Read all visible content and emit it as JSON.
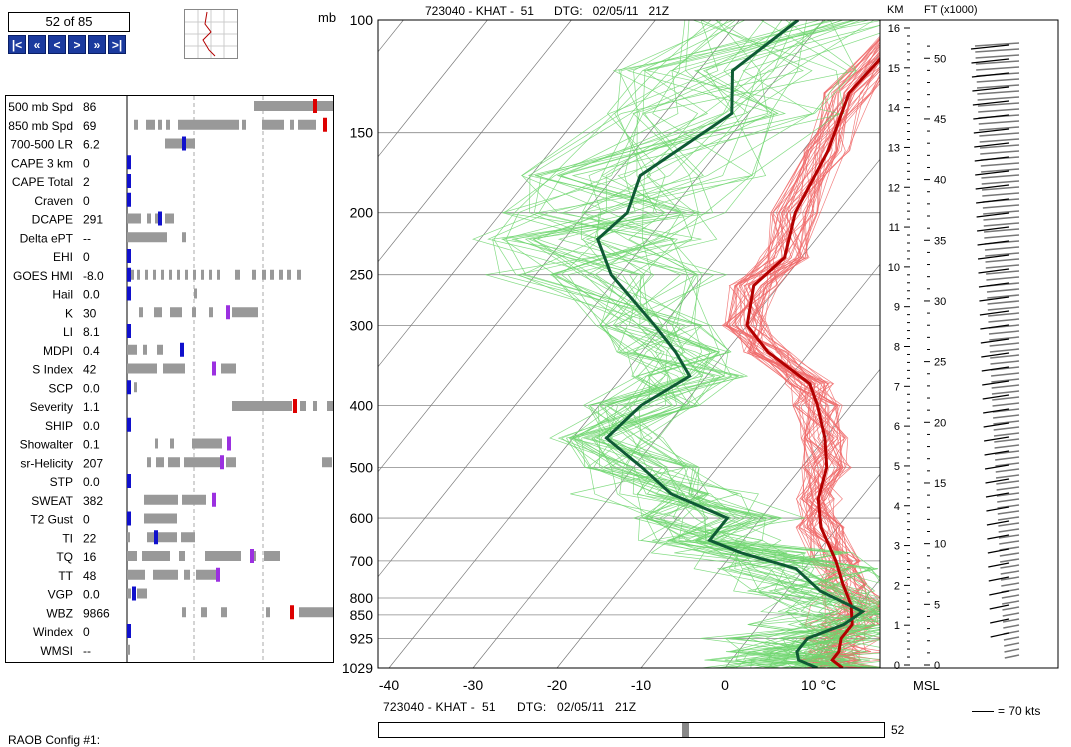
{
  "nav": {
    "counter": "52 of 85",
    "buttons": [
      {
        "label": "|<",
        "name": "first-button"
      },
      {
        "label": "«",
        "name": "prev-fast-button"
      },
      {
        "label": "<",
        "name": "prev-button"
      },
      {
        "label": ">",
        "name": "next-button"
      },
      {
        "label": "»",
        "name": "next-fast-button"
      },
      {
        "label": ">|",
        "name": "last-button"
      }
    ]
  },
  "indices": [
    {
      "label": "500 mb Spd",
      "value": "86"
    },
    {
      "label": "850 mb Spd",
      "value": "69"
    },
    {
      "label": "700-500 LR",
      "value": "6.2"
    },
    {
      "label": "CAPE 3 km",
      "value": "0"
    },
    {
      "label": "CAPE Total",
      "value": "2"
    },
    {
      "label": "Craven",
      "value": "0"
    },
    {
      "label": "DCAPE",
      "value": "291"
    },
    {
      "label": "Delta ePT",
      "value": "--"
    },
    {
      "label": "EHI",
      "value": "0"
    },
    {
      "label": "GOES HMI",
      "value": "-8.0"
    },
    {
      "label": "Hail",
      "value": "0.0"
    },
    {
      "label": "K",
      "value": "30"
    },
    {
      "label": "LI",
      "value": "8.1"
    },
    {
      "label": "MDPI",
      "value": "0.4"
    },
    {
      "label": "S Index",
      "value": "42"
    },
    {
      "label": "SCP",
      "value": "0.0"
    },
    {
      "label": "Severity",
      "value": "1.1"
    },
    {
      "label": "SHIP",
      "value": "0.0"
    },
    {
      "label": "Showalter",
      "value": "0.1"
    },
    {
      "label": "sr-Helicity",
      "value": "207"
    },
    {
      "label": "STP",
      "value": "0.0"
    },
    {
      "label": "SWEAT",
      "value": "382"
    },
    {
      "label": "T2 Gust",
      "value": "0"
    },
    {
      "label": "TI",
      "value": "22"
    },
    {
      "label": "TQ",
      "value": "16"
    },
    {
      "label": "TT",
      "value": "48"
    },
    {
      "label": "VGP",
      "value": "0.0"
    },
    {
      "label": "WBZ",
      "value": "9866"
    },
    {
      "label": "Windex",
      "value": "0"
    },
    {
      "label": "WMSI",
      "value": "--"
    }
  ],
  "skewt": {
    "header": "723040 - KHAT -  51      DTG:   02/05/11   21Z",
    "pressure_unit": "mb",
    "pressure_labels": [
      "100",
      "150",
      "200",
      "250",
      "300",
      "400",
      "500",
      "600",
      "700",
      "800",
      "850",
      "925",
      "1029"
    ],
    "temp_labels": [
      "-40",
      "-30",
      "-20",
      "-10",
      "0",
      "10 °C"
    ]
  },
  "height_axis": {
    "km_label": "KM",
    "ft_label": "FT (x1000)",
    "km_ticks": [
      "16",
      "15",
      "14",
      "13",
      "12",
      "11",
      "10",
      "9",
      "8",
      "7",
      "6",
      "5",
      "4",
      "3",
      "2",
      "1",
      "0"
    ],
    "ft_ticks": [
      "50",
      "45",
      "40",
      "35",
      "30",
      "25",
      "20",
      "15",
      "10",
      "5",
      "0"
    ],
    "msl_label": "MSL"
  },
  "legend": {
    "wind_scale": "= 70 kts"
  },
  "footer": {
    "info": "723040 - KHAT -  51      DTG:   02/05/11   21Z",
    "slider_value": "52",
    "slider_fraction": 0.6,
    "config": "RAOB Config #1:"
  },
  "colors": {
    "temp_main": "#b30000",
    "temp_ensemble": "#f06a6a",
    "dew_main": "#0f5a35",
    "dew_ensemble": "#6fd66f",
    "nav_button": "#1b3a9e",
    "bar_gray": "#999999",
    "marker_blue": "#1010cc",
    "marker_red": "#dd0000",
    "marker_purple": "#9b30e0"
  }
}
